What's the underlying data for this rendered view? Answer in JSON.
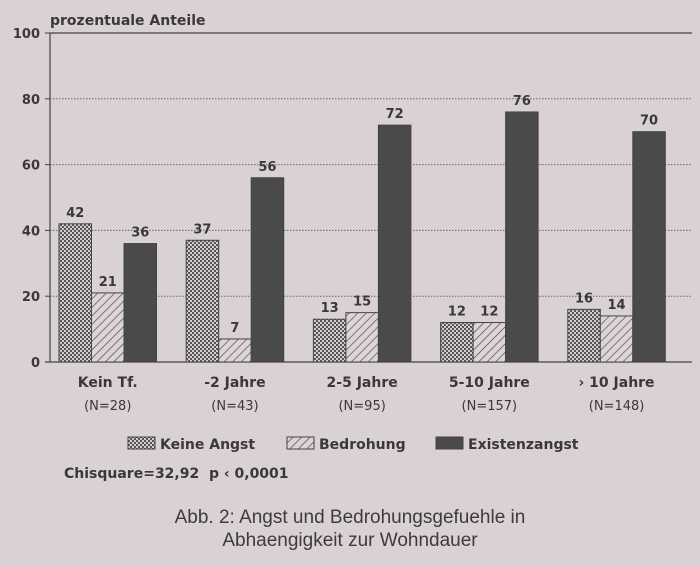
{
  "chart_data": {
    "type": "bar",
    "title": "Abb. 2: Angst und Bedrohungsgefuehle in Abhaengigkeit zur Wohndauer",
    "title_lines": [
      "Abb. 2: Angst und Bedrohungsgefuehle in",
      "Abhaengigkeit zur Wohndauer"
    ],
    "ylabel": "prozentuale Anteile",
    "xlabel": "",
    "ylim": [
      0,
      100
    ],
    "yticks": [
      0,
      20,
      40,
      60,
      80,
      100
    ],
    "grid": true,
    "categories": [
      "Kein Tf.",
      "-2 Jahre",
      "2-5 Jahre",
      "5-10 Jahre",
      "› 10 Jahre"
    ],
    "category_n": [
      "(N=28)",
      "(N=43)",
      "(N=95)",
      "(N=157)",
      "(N=148)"
    ],
    "series": [
      {
        "name": "Keine Angst",
        "pattern": "crosshatch",
        "values": [
          42,
          37,
          13,
          12,
          16
        ]
      },
      {
        "name": "Bedrohung",
        "pattern": "diagonal",
        "values": [
          21,
          7,
          15,
          12,
          14
        ]
      },
      {
        "name": "Existenzangst",
        "pattern": "solid",
        "color": "#4a4a4c",
        "values": [
          36,
          56,
          72,
          76,
          70
        ]
      }
    ],
    "legend_position": "bottom",
    "annotation": "Chisquare=32,92  p ‹ 0,0001"
  }
}
